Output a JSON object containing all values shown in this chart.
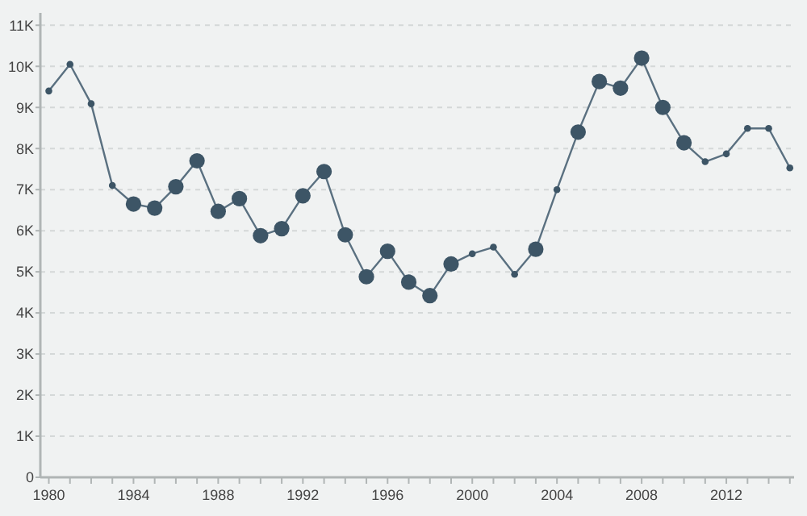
{
  "chart_data": {
    "type": "line",
    "x": [
      1980,
      1981,
      1982,
      1983,
      1984,
      1985,
      1986,
      1987,
      1988,
      1989,
      1990,
      1991,
      1992,
      1993,
      1994,
      1995,
      1996,
      1997,
      1998,
      1999,
      2000,
      2001,
      2002,
      2003,
      2004,
      2005,
      2006,
      2007,
      2008,
      2009,
      2010,
      2011,
      2012,
      2013,
      2014,
      2015
    ],
    "series": [
      {
        "color": "#5a7080",
        "marker": "none",
        "values": [
          9400,
          10050,
          9090,
          7100,
          6650,
          6550,
          7070,
          7700,
          6470,
          6780,
          5880,
          6050,
          6850,
          7440,
          5900,
          4880,
          5500,
          4750,
          4420,
          5190,
          5440,
          5600,
          4940,
          5550,
          7000,
          8400,
          9630,
          9470,
          10200,
          9000,
          8140,
          7680,
          7870,
          8490,
          8490,
          7530
        ]
      },
      {
        "type": "bubble",
        "color": "#3d5566",
        "values": [
          9400,
          10050,
          9090,
          7100,
          6650,
          6550,
          7070,
          7700,
          6470,
          6780,
          5880,
          6050,
          6850,
          7440,
          5900,
          4880,
          5500,
          4750,
          4420,
          5190,
          5440,
          5600,
          4940,
          5550,
          7000,
          8400,
          9630,
          9470,
          10200,
          9000,
          8140,
          7680,
          7870,
          8490,
          8490,
          7530
        ],
        "sizes": [
          0.2,
          0.2,
          0.2,
          0.2,
          1,
          1,
          1,
          1,
          1,
          1,
          1,
          1,
          1,
          1,
          1,
          1,
          1,
          1,
          1,
          1,
          0.2,
          0.2,
          0.2,
          1,
          0.2,
          1,
          1,
          1,
          1,
          1,
          1,
          0.2,
          0.2,
          0.2,
          0.2,
          0.2
        ]
      }
    ],
    "xlim": [
      1979.6,
      2015.2
    ],
    "xticks": [
      {
        "value": 1980,
        "label": "1980"
      },
      {
        "value": 1981,
        "label": null
      },
      {
        "value": 1982,
        "label": null
      },
      {
        "value": 1983,
        "label": null
      },
      {
        "value": 1984,
        "label": "1984"
      },
      {
        "value": 1985,
        "label": null
      },
      {
        "value": 1986,
        "label": null
      },
      {
        "value": 1987,
        "label": null
      },
      {
        "value": 1988,
        "label": "1988"
      },
      {
        "value": 1989,
        "label": null
      },
      {
        "value": 1990,
        "label": null
      },
      {
        "value": 1991,
        "label": null
      },
      {
        "value": 1992,
        "label": "1992"
      },
      {
        "value": 1993,
        "label": null
      },
      {
        "value": 1994,
        "label": null
      },
      {
        "value": 1995,
        "label": null
      },
      {
        "value": 1996,
        "label": "1996"
      },
      {
        "value": 1997,
        "label": null
      },
      {
        "value": 1998,
        "label": null
      },
      {
        "value": 1999,
        "label": null
      },
      {
        "value": 2000,
        "label": "2000"
      },
      {
        "value": 2001,
        "label": null
      },
      {
        "value": 2002,
        "label": null
      },
      {
        "value": 2003,
        "label": null
      },
      {
        "value": 2004,
        "label": "2004"
      },
      {
        "value": 2005,
        "label": null
      },
      {
        "value": 2006,
        "label": null
      },
      {
        "value": 2007,
        "label": null
      },
      {
        "value": 2008,
        "label": "2008"
      },
      {
        "value": 2009,
        "label": null
      },
      {
        "value": 2010,
        "label": null
      },
      {
        "value": 2011,
        "label": null
      },
      {
        "value": 2012,
        "label": "2012"
      },
      {
        "value": 2013,
        "label": null
      },
      {
        "value": 2014,
        "label": null
      },
      {
        "value": 2015,
        "label": null
      }
    ],
    "ylim": [
      0,
      11300
    ],
    "yticks": [
      0,
      {
        "value": 1000,
        "label": "1K"
      },
      {
        "value": 2000,
        "label": "2K"
      },
      {
        "value": 3000,
        "label": "3K"
      },
      {
        "value": 4000,
        "label": "4K"
      },
      {
        "value": 5000,
        "label": "5K"
      },
      {
        "value": 6000,
        "label": "6K"
      },
      {
        "value": 7000,
        "label": "7K"
      },
      {
        "value": 8000,
        "label": "8K"
      },
      {
        "value": 9000,
        "label": "9K"
      },
      {
        "value": 10000,
        "label": "10K"
      },
      {
        "value": 11000,
        "label": "11K"
      }
    ],
    "grid": "y"
  }
}
